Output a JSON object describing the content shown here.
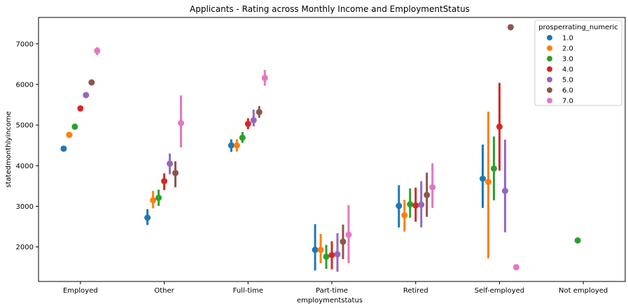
{
  "chart_data": {
    "type": "pointplot",
    "title": "Applicants - Rating across Monthly Income and EmploymentStatus",
    "xlabel": "employmentstatus",
    "ylabel": "statedmonthlyincome",
    "ylim": [
      1150,
      7650
    ],
    "yticks": [
      2000,
      3000,
      4000,
      5000,
      6000,
      7000
    ],
    "categories": [
      "Employed",
      "Other",
      "Full-time",
      "Part-time",
      "Retired",
      "Self-employed",
      "Not employed"
    ],
    "legend": {
      "title": "prosperrating_numeric",
      "position": "top-right"
    },
    "grid": false,
    "series": [
      {
        "name": "1.0",
        "color": "#1f77b4",
        "values": [
          4420,
          2720,
          4500,
          1930,
          3010,
          3680,
          null
        ],
        "err": [
          [
            4360,
            4480
          ],
          [
            2540,
            2930
          ],
          [
            4340,
            4650
          ],
          [
            1420,
            2560
          ],
          [
            2480,
            3520
          ],
          [
            2960,
            4520
          ],
          null
        ]
      },
      {
        "name": "2.0",
        "color": "#ff7f0e",
        "values": [
          4760,
          3150,
          4500,
          1930,
          2780,
          3600,
          null
        ],
        "err": [
          [
            4720,
            4800
          ],
          [
            2950,
            3380
          ],
          [
            4350,
            4650
          ],
          [
            1600,
            2320
          ],
          [
            2380,
            3160
          ],
          [
            1720,
            5330
          ],
          null
        ]
      },
      {
        "name": "3.0",
        "color": "#2ca02c",
        "values": [
          4960,
          3210,
          4690,
          1760,
          3050,
          3930,
          2160
        ],
        "err": [
          [
            4930,
            4990
          ],
          [
            3010,
            3410
          ],
          [
            4560,
            4830
          ],
          [
            1460,
            2050
          ],
          [
            2720,
            3440
          ],
          [
            3150,
            4720
          ],
          null
        ]
      },
      {
        "name": "4.0",
        "color": "#d62728",
        "values": [
          5410,
          3620,
          5030,
          1800,
          3020,
          4960,
          null
        ],
        "err": [
          [
            5380,
            5440
          ],
          [
            3400,
            3810
          ],
          [
            4900,
            5170
          ],
          [
            1450,
            2140
          ],
          [
            2620,
            3460
          ],
          [
            3880,
            6040
          ],
          null
        ]
      },
      {
        "name": "5.0",
        "color": "#9467bd",
        "values": [
          5740,
          4050,
          5120,
          1820,
          3040,
          3380,
          null
        ],
        "err": [
          [
            5700,
            5780
          ],
          [
            3790,
            4300
          ],
          [
            4970,
            5380
          ],
          [
            1390,
            2340
          ],
          [
            2480,
            3620
          ],
          [
            2360,
            4640
          ],
          null
        ]
      },
      {
        "name": "6.0",
        "color": "#8c564b",
        "values": [
          6050,
          3820,
          5320,
          2130,
          3280,
          7410,
          null
        ],
        "err": [
          [
            6000,
            6100
          ],
          [
            3470,
            4110
          ],
          [
            5180,
            5470
          ],
          [
            1700,
            2550
          ],
          [
            2740,
            3830
          ],
          null,
          null
        ]
      },
      {
        "name": "7.0",
        "color": "#e377c2",
        "values": [
          6830,
          5050,
          6160,
          2300,
          3470,
          1500,
          null
        ],
        "err": [
          [
            6720,
            6920
          ],
          [
            4450,
            5730
          ],
          [
            5970,
            6360
          ],
          [
            1600,
            3030
          ],
          [
            2960,
            4060
          ],
          null,
          null
        ]
      }
    ]
  }
}
